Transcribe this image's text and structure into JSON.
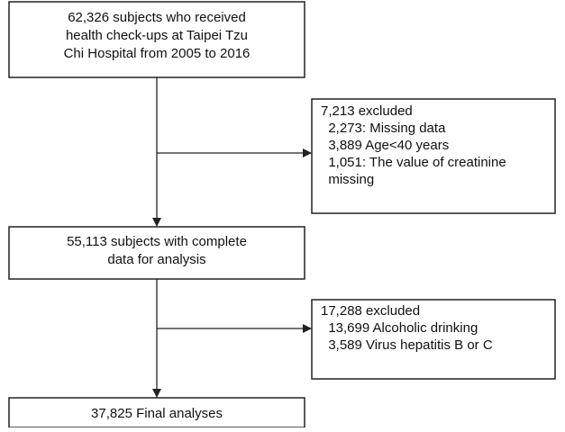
{
  "nodes": [
    {
      "lines": [
        "62,326 subjects who received",
        "health check-ups at Taipei Tzu",
        "Chi Hospital from 2005 to 2016"
      ]
    },
    {
      "lines": [
        "7,213 excluded",
        "  2,273: Missing data",
        "  3,889 Age<40 years",
        "  1,051: The value of creatinine",
        "  missing"
      ]
    },
    {
      "lines": [
        "55,113 subjects with complete",
        "data for analysis"
      ]
    },
    {
      "lines": [
        "17,288 excluded",
        "  13,699 Alcoholic drinking",
        "  3,589 Virus hepatitis B or C"
      ]
    },
    {
      "lines": [
        "37,825 Final analyses"
      ]
    }
  ]
}
